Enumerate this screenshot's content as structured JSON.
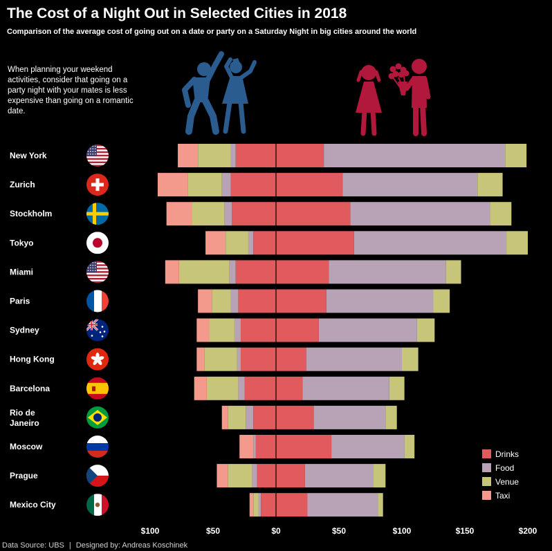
{
  "title": "The Cost of a Night Out in Selected Cities in 2018",
  "subtitle": "Comparison of the average cost of going out on a date or party on a Saturday Night in big cities around the world",
  "intro": "When planning your weekend activities, consider that going on a party night with your mates is less expensive than going on a romantic date.",
  "footer": {
    "source": "Data Source: UBS",
    "separator": "|",
    "designer": "Designed by: Andreas Koschinek"
  },
  "colors": {
    "Drinks": "#e05a5e",
    "Food": "#b8a2b5",
    "Venue": "#c7c57a",
    "Taxi": "#f49a8c",
    "party_icon": "#2b5c8f",
    "date_icon": "#b2173c"
  },
  "icons": {
    "party": "dancing-couple-icon",
    "date": "date-with-flowers-icon"
  },
  "chart_data": {
    "type": "bar",
    "orientation": "horizontal",
    "diverging": true,
    "left_side": "party night",
    "right_side": "romantic date",
    "categories": [
      "New York",
      "Zurich",
      "Stockholm",
      "Tokyo",
      "Miami",
      "Paris",
      "Sydney",
      "Hong Kong",
      "Barcelona",
      "Rio de Janeiro",
      "Moscow",
      "Prague",
      "Mexico City"
    ],
    "flags": [
      "usa-flag-icon",
      "switzerland-flag-icon",
      "sweden-flag-icon",
      "japan-flag-icon",
      "usa-flag-icon",
      "france-flag-icon",
      "australia-flag-icon",
      "hong-kong-flag-icon",
      "spain-flag-icon",
      "brazil-flag-icon",
      "russia-flag-icon",
      "czech-flag-icon",
      "mexico-flag-icon"
    ],
    "party": [
      {
        "name": "Drinks",
        "values": [
          32,
          36,
          35,
          18,
          32,
          30,
          28,
          28,
          25,
          18,
          16,
          15,
          12
        ]
      },
      {
        "name": "Food",
        "values": [
          4,
          7,
          6,
          4,
          5,
          6,
          5,
          3,
          5,
          6,
          2,
          4,
          2
        ]
      },
      {
        "name": "Venue",
        "values": [
          26,
          27,
          26,
          18,
          40,
          15,
          20,
          26,
          25,
          14,
          0,
          19,
          4
        ]
      },
      {
        "name": "Taxi",
        "values": [
          16,
          24,
          20,
          16,
          11,
          11,
          10,
          6,
          10,
          5,
          11,
          9,
          3
        ]
      }
    ],
    "date": [
      {
        "name": "Drinks",
        "values": [
          38,
          53,
          59,
          62,
          42,
          40,
          34,
          24,
          21,
          30,
          44,
          23,
          25
        ]
      },
      {
        "name": "Food",
        "values": [
          144,
          107,
          111,
          121,
          93,
          85,
          78,
          76,
          69,
          57,
          58,
          54,
          56
        ]
      },
      {
        "name": "Venue",
        "values": [
          17,
          20,
          17,
          17,
          12,
          13,
          14,
          13,
          12,
          9,
          8,
          10,
          4
        ]
      }
    ],
    "x_ticks": [
      "$100",
      "$50",
      "$0",
      "$50",
      "$100",
      "$150",
      "$200"
    ],
    "xlim": [
      -100,
      200
    ],
    "legend": [
      "Drinks",
      "Food",
      "Venue",
      "Taxi"
    ],
    "legend_position": "bottom-right"
  }
}
